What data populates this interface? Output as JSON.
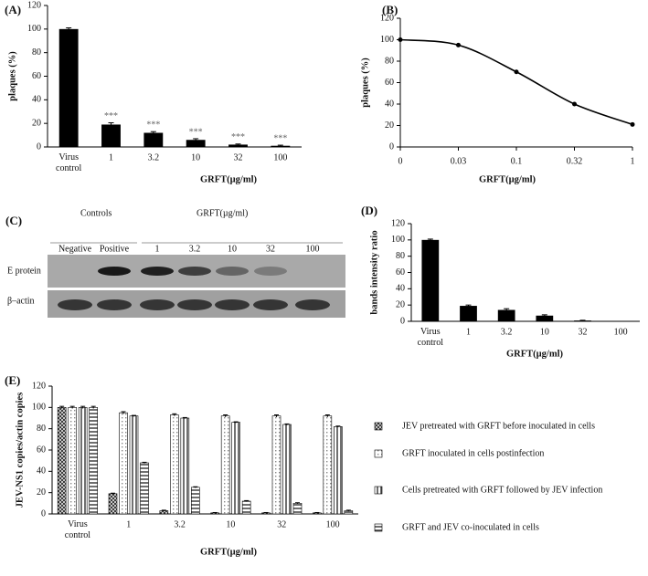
{
  "chart_data": [
    {
      "type": "bar",
      "panel": "(A)",
      "y_label": "plaques (%)",
      "x_label": "GRFT(µg/ml)",
      "categories": [
        "Virus control",
        "1",
        "3.2",
        "10",
        "32",
        "100"
      ],
      "values": [
        100,
        19,
        12,
        6,
        2,
        1
      ],
      "errors": [
        1,
        1.5,
        1,
        1,
        0.5,
        0.5
      ],
      "annotations": [
        null,
        "***",
        "***",
        "***",
        "***",
        "***"
      ],
      "annotation_color": "#666",
      "color": "#000",
      "ylim": [
        0,
        120
      ],
      "yticks": [
        0,
        20,
        40,
        60,
        80,
        100,
        120
      ]
    },
    {
      "type": "line",
      "panel": "(B)",
      "y_label": "plaques (%)",
      "x_label": "GRFT(µg/ml)",
      "categories": [
        "0",
        "0.03",
        "0.1",
        "0.32",
        "1"
      ],
      "values": [
        100,
        95,
        70,
        40,
        21
      ],
      "color": "#000",
      "smooth": true,
      "ylim": [
        0,
        120
      ],
      "yticks": [
        0,
        20,
        40,
        60,
        80,
        100,
        120
      ]
    },
    {
      "type": "blot",
      "panel": "(C)",
      "group_labels": [
        "Controls",
        "GRFT(µg/ml)"
      ],
      "lanes": [
        "Negative",
        "Positive",
        "1",
        "3.2",
        "10",
        "32",
        "100"
      ],
      "rows": [
        "E protein",
        "β–actin"
      ]
    },
    {
      "type": "bar",
      "panel": "(D)",
      "y_label": "bands intensity ratio",
      "x_label": "GRFT(µg/ml)",
      "categories": [
        "Virus control",
        "1",
        "3.2",
        "10",
        "32",
        "100"
      ],
      "values": [
        100,
        19,
        14,
        7,
        1,
        0
      ],
      "errors": [
        1,
        1,
        1.5,
        1,
        0.3,
        0
      ],
      "color": "#000",
      "ylim": [
        0,
        120
      ],
      "yticks": [
        0,
        20,
        40,
        60,
        80,
        100,
        120
      ]
    },
    {
      "type": "grouped_bar",
      "panel": "(E)",
      "y_label": "JEV-NS1 copies/actin copies",
      "x_label": "GRFT(µg/ml)",
      "categories": [
        "Virus control",
        "1",
        "3.2",
        "10",
        "32",
        "100"
      ],
      "legend": "right",
      "ylim": [
        0,
        120
      ],
      "yticks": [
        0,
        20,
        40,
        60,
        80,
        100,
        120
      ],
      "series": [
        {
          "name": "JEV pretreated with GRFT before inoculated in cells",
          "color": "#222",
          "pattern": "crosshatch",
          "values": [
            100,
            19,
            3,
            1,
            1,
            1
          ],
          "errors": [
            1,
            0.5,
            0.5,
            0.3,
            0.3,
            0.3
          ]
        },
        {
          "name": "GRFT inoculated in cells postinfection",
          "color": "#888",
          "pattern": "dots",
          "values": [
            100,
            95,
            93,
            92,
            92,
            92
          ],
          "errors": [
            1,
            1,
            1,
            1,
            1,
            1
          ]
        },
        {
          "name": "Cells pretreated with GRFT followed by JEV infection",
          "color": "#222",
          "pattern": "vlines",
          "values": [
            100,
            92,
            90,
            86,
            84,
            82
          ],
          "errors": [
            1,
            0.5,
            0.5,
            0.5,
            0.5,
            0.5
          ]
        },
        {
          "name": "GRFT and JEV co-inoculated in cells",
          "color": "#222",
          "pattern": "hlines",
          "values": [
            100,
            48,
            25,
            12,
            10,
            3
          ],
          "errors": [
            1,
            0.5,
            0.5,
            0.5,
            0.5,
            0.5
          ]
        }
      ]
    }
  ]
}
